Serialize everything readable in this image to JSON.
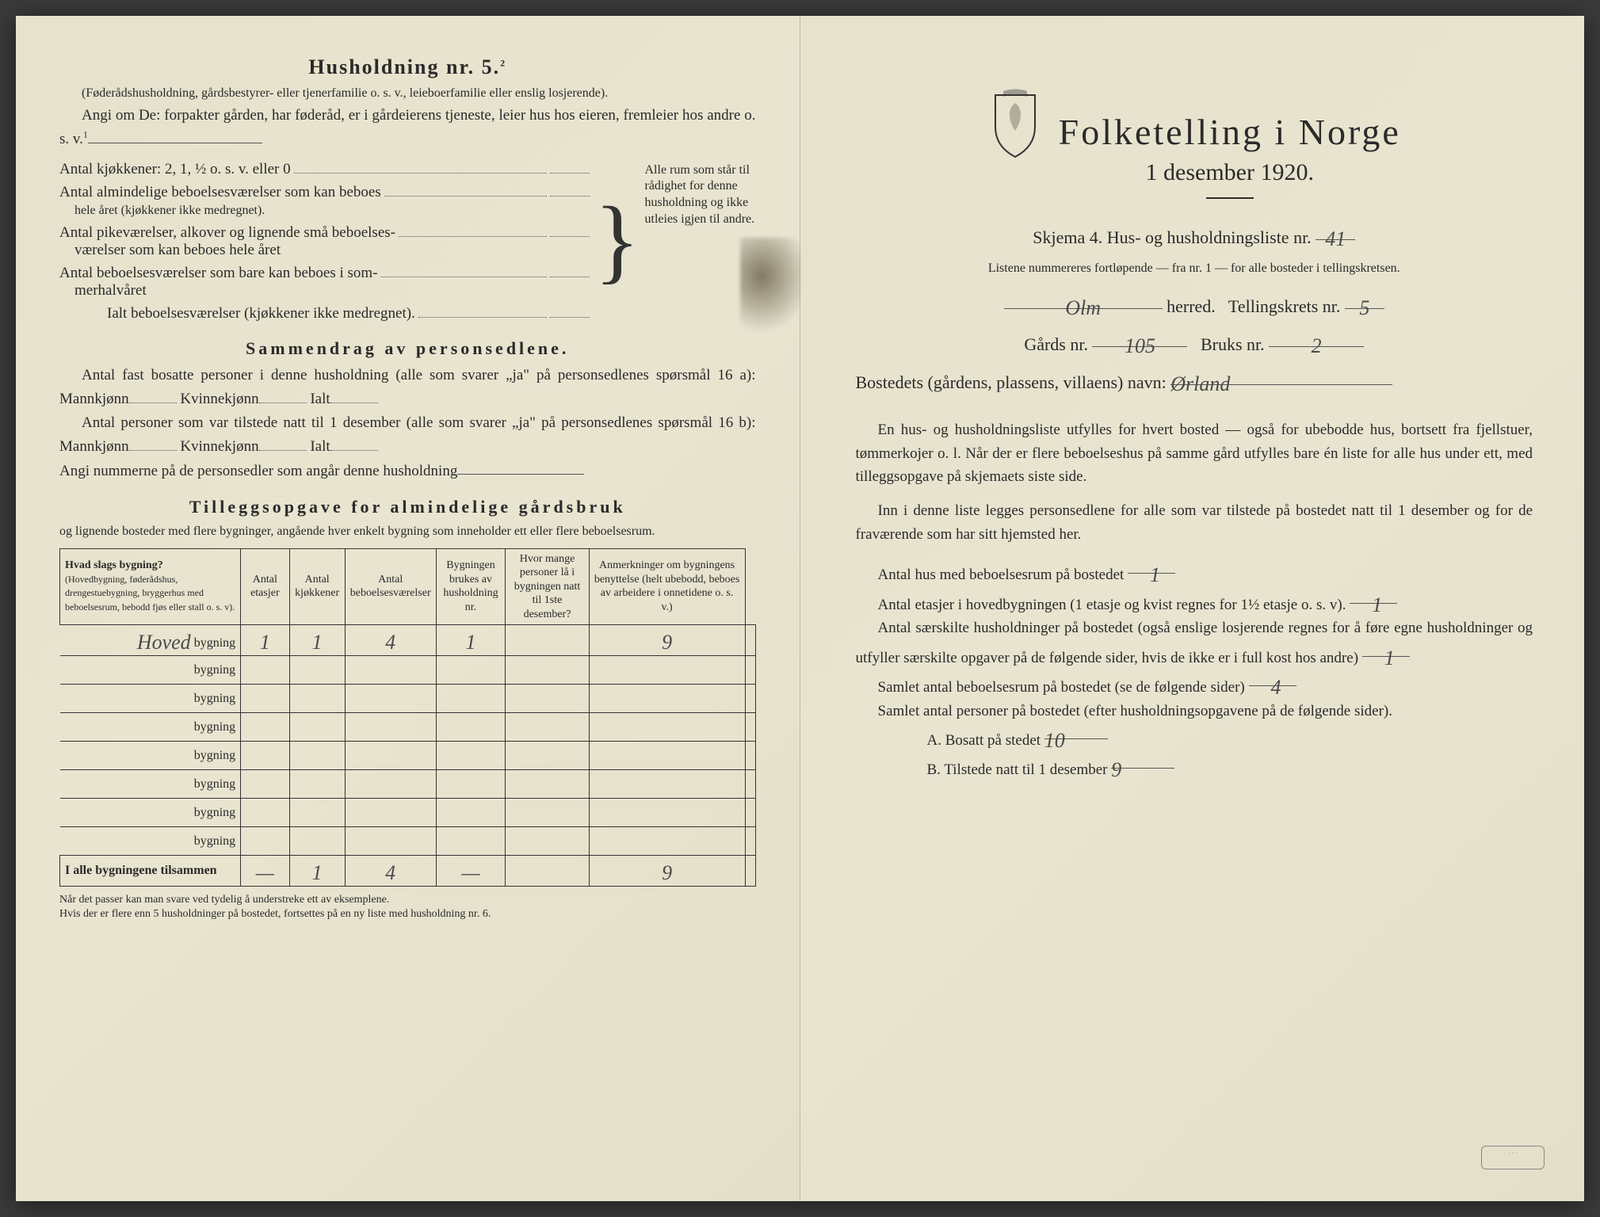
{
  "left": {
    "heading": "Husholdning nr. 5.",
    "heading_sup": "2",
    "intro1": "(Føderådshusholdning, gårdsbestyrer- eller tjenerfamilie o. s. v., leieboerfamilie eller enslig losjerende).",
    "intro2": "Angi om De: forpakter gården, har føderåd, er i gårdeierens tjeneste, leier hus hos eieren, fremleier hos andre o. s. v.",
    "intro2_sup": "1",
    "rooms": {
      "r1": "Antal kjøkkener: 2, 1, ½ o. s. v. eller 0",
      "r2a": "Antal almindelige beboelsesværelser som kan beboes",
      "r2b": "hele året (kjøkkener ikke medregnet).",
      "r3a": "Antal pikeværelser, alkover og lignende små beboelses-",
      "r3b": "værelser som kan beboes hele året",
      "r4a": "Antal beboelsesværelser som bare kan beboes i som-",
      "r4b": "merhalvåret",
      "total": "Ialt beboelsesværelser (kjøkkener ikke medregnet).",
      "brace_text": "Alle rum som står til rådighet for denne husholdning og ikke utleies igjen til andre."
    },
    "summary_heading": "Sammendrag av personsedlene.",
    "s1": "Antal fast bosatte personer i denne husholdning (alle som svarer „ja\" på personsedlenes spørsmål 16 a): Mannkjønn",
    "s1b": "Kvinnekjønn",
    "s1c": "Ialt",
    "s2": "Antal personer som var tilstede natt til 1 desember (alle som svarer „ja\" på personsedlenes spørsmål 16 b): Mannkjønn",
    "s2b": "Kvinnekjønn",
    "s2c": "Ialt",
    "s3": "Angi nummerne på de personsedler som angår denne husholdning",
    "tillegg_heading": "Tilleggsopgave for almindelige gårdsbruk",
    "tillegg_sub": "og lignende bosteder med flere bygninger, angående hver enkelt bygning som inneholder ett eller flere beboelsesrum.",
    "table": {
      "h1": "Hvad slags bygning?",
      "h1_sub": "(Hovedbygning, føderådshus, drengestuebygning, bryggerhus med beboelsesrum, bebodd fjøs eller stall o. s. v).",
      "h2": "Antal etasjer",
      "h3": "Antal kjøkkener",
      "h4": "Antal beboelsesværelser",
      "h5": "Bygningen brukes av husholdning nr.",
      "h6": "Hvor mange personer lå i bygningen natt til 1ste desember?",
      "h7": "Anmerkninger om bygningens benyttelse (helt ubebodd, beboes av arbeidere i onnetidene o. s. v.)",
      "row_label": "bygning",
      "row1_name": "Hoved",
      "row1": [
        "1",
        "1",
        "4",
        "1",
        "",
        "9",
        ""
      ],
      "sum_label": "I alle bygningene tilsammen",
      "sum": [
        "—",
        "1",
        "4",
        "—",
        "",
        "9",
        ""
      ]
    },
    "foot1": "Når det passer kan man svare ved tydelig å understreke ett av eksemplene.",
    "foot2": "Hvis der er flere enn 5 husholdninger på bostedet, fortsettes på en ny liste med husholdning nr. 6."
  },
  "right": {
    "title": "Folketelling i Norge",
    "date": "1 desember 1920.",
    "form_line": "Skjema 4. Hus- og husholdningsliste nr.",
    "form_nr": "41",
    "sub_line": "Listene nummereres fortløpende — fra nr. 1 — for alle bosteder i tellingskretsen.",
    "herred_label": "herred.",
    "herred_val": "Olm",
    "krets_label": "Tellingskrets nr.",
    "krets_val": "5",
    "gard_label": "Gårds nr.",
    "gard_val": "105",
    "bruk_label": "Bruks nr.",
    "bruk_val": "2",
    "bosted_label": "Bostedets (gårdens, plassens, villaens) navn:",
    "bosted_val": "Ørland",
    "p1": "En hus- og husholdningsliste utfylles for hvert bosted — også for ubebodde hus, bortsett fra fjellstuer, tømmerkojer o. l. Når der er flere beboelseshus på samme gård utfylles bare én liste for alle hus under ett, med tilleggsopgave på skjemaets siste side.",
    "p2": "Inn i denne liste legges personsedlene for alle som var tilstede på bostedet natt til 1 desember og for de fraværende som har sitt hjemsted her.",
    "q1": "Antal hus med beboelsesrum på bostedet",
    "q1_val": "1",
    "q2": "Antal etasjer i hovedbygningen (1 etasje og kvist regnes for 1½ etasje o. s. v).",
    "q2_val": "1",
    "q3": "Antal særskilte husholdninger på bostedet (også enslige losjerende regnes for å føre egne husholdninger og utfyller særskilte opgaver på de følgende sider, hvis de ikke er i full kost hos andre)",
    "q3_val": "1",
    "q4": "Samlet antal beboelsesrum på bostedet (se de følgende sider)",
    "q4_val": "4",
    "q5": "Samlet antal personer på bostedet (efter husholdningsopgavene på de følgende sider).",
    "qa": "A. Bosatt på stedet",
    "qa_val": "10",
    "qb": "B. Tilstede natt til 1 desember",
    "qb_val": "9"
  }
}
